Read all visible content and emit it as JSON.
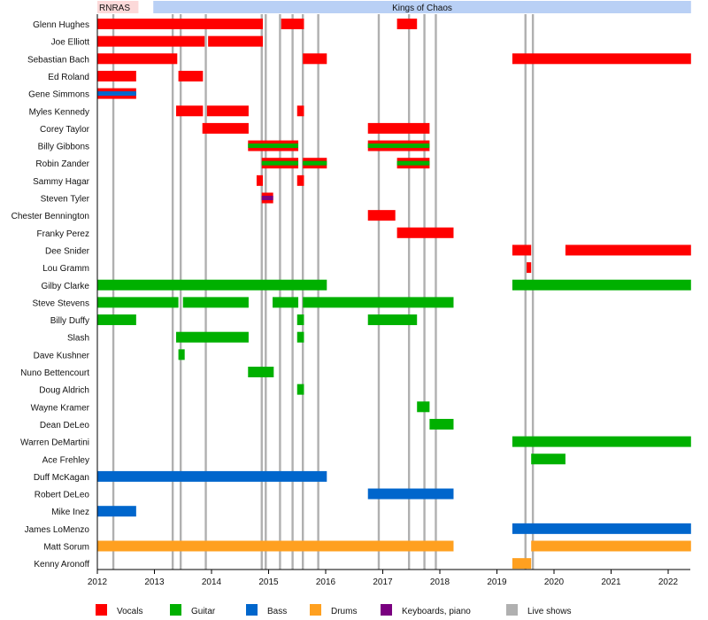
{
  "chart_data": {
    "type": "timeline",
    "title": "",
    "xlim": [
      2012.0,
      2022.4
    ],
    "x_ticks": [
      "2012",
      "2013",
      "2014",
      "2015",
      "2016",
      "2017",
      "2018",
      "2019",
      "2020",
      "2021",
      "2022"
    ],
    "periods": [
      {
        "label": "RNRAS",
        "start": 2012.0,
        "end": 2012.72,
        "color": "#fcd9d9"
      },
      {
        "label": "Kings of Chaos",
        "start": 2012.98,
        "end": 2022.4,
        "color": "#b9d0f5"
      }
    ],
    "live_shows": [
      2012.28,
      2013.32,
      2013.46,
      2013.9,
      2014.88,
      2014.95,
      2015.2,
      2015.42,
      2015.6,
      2015.87,
      2016.93,
      2017.46,
      2017.73,
      2017.93,
      2019.5,
      2019.63
    ],
    "colors": {
      "Vocals": "#ff0000",
      "Guitar": "#00b000",
      "Bass": "#0066cc",
      "Drums": "#ffa020",
      "Keyboards, piano": "#7a0080",
      "Live shows": "#b0b0b0"
    },
    "legend": [
      "Vocals",
      "Guitar",
      "Bass",
      "Drums",
      "Keyboards, piano",
      "Live shows"
    ],
    "members": [
      {
        "name": "Glenn Hughes",
        "bars": [
          {
            "s": 2012.0,
            "e": 2014.9,
            "r": "Vocals"
          },
          {
            "s": 2015.22,
            "e": 2015.62,
            "r": "Vocals"
          },
          {
            "s": 2017.25,
            "e": 2017.6,
            "r": "Vocals"
          }
        ]
      },
      {
        "name": "Joe Elliott",
        "bars": [
          {
            "s": 2012.0,
            "e": 2013.88,
            "r": "Vocals"
          },
          {
            "s": 2013.94,
            "e": 2014.9,
            "r": "Vocals"
          }
        ]
      },
      {
        "name": "Sebastian Bach",
        "bars": [
          {
            "s": 2012.0,
            "e": 2013.4,
            "r": "Vocals"
          },
          {
            "s": 2015.6,
            "e": 2016.02,
            "r": "Vocals"
          },
          {
            "s": 2019.27,
            "e": 2022.4,
            "r": "Vocals"
          }
        ]
      },
      {
        "name": "Ed Roland",
        "bars": [
          {
            "s": 2012.0,
            "e": 2012.68,
            "r": "Vocals"
          },
          {
            "s": 2013.42,
            "e": 2013.85,
            "r": "Vocals"
          }
        ]
      },
      {
        "name": "Gene Simmons",
        "bars": [
          {
            "s": 2012.0,
            "e": 2012.68,
            "r": "Vocals",
            "inner": "Bass"
          }
        ]
      },
      {
        "name": "Myles Kennedy",
        "bars": [
          {
            "s": 2013.38,
            "e": 2013.85,
            "r": "Vocals"
          },
          {
            "s": 2013.92,
            "e": 2014.65,
            "r": "Vocals"
          },
          {
            "s": 2015.5,
            "e": 2015.62,
            "r": "Vocals"
          }
        ]
      },
      {
        "name": "Corey Taylor",
        "bars": [
          {
            "s": 2013.84,
            "e": 2014.65,
            "r": "Vocals"
          },
          {
            "s": 2016.74,
            "e": 2017.82,
            "r": "Vocals"
          }
        ]
      },
      {
        "name": "Billy Gibbons",
        "bars": [
          {
            "s": 2014.64,
            "e": 2015.52,
            "r": "Vocals",
            "inner": "Guitar"
          },
          {
            "s": 2016.74,
            "e": 2017.82,
            "r": "Vocals",
            "inner": "Guitar"
          }
        ]
      },
      {
        "name": "Robin Zander",
        "bars": [
          {
            "s": 2014.88,
            "e": 2015.52,
            "r": "Vocals",
            "inner": "Guitar"
          },
          {
            "s": 2015.6,
            "e": 2016.02,
            "r": "Vocals",
            "inner": "Guitar"
          },
          {
            "s": 2017.25,
            "e": 2017.82,
            "r": "Vocals",
            "inner": "Guitar"
          }
        ]
      },
      {
        "name": "Sammy Hagar",
        "bars": [
          {
            "s": 2014.79,
            "e": 2014.9,
            "r": "Vocals"
          },
          {
            "s": 2015.5,
            "e": 2015.62,
            "r": "Vocals"
          }
        ]
      },
      {
        "name": "Steven Tyler",
        "bars": [
          {
            "s": 2014.88,
            "e": 2015.08,
            "r": "Vocals",
            "inner": "Keyboards, piano"
          }
        ]
      },
      {
        "name": "Chester Bennington",
        "bars": [
          {
            "s": 2016.74,
            "e": 2017.22,
            "r": "Vocals"
          }
        ]
      },
      {
        "name": "Franky Perez",
        "bars": [
          {
            "s": 2017.25,
            "e": 2018.24,
            "r": "Vocals"
          }
        ]
      },
      {
        "name": "Dee Snider",
        "bars": [
          {
            "s": 2019.27,
            "e": 2019.6,
            "r": "Vocals"
          },
          {
            "s": 2020.2,
            "e": 2022.4,
            "r": "Vocals"
          }
        ]
      },
      {
        "name": "Lou Gramm",
        "bars": [
          {
            "s": 2019.52,
            "e": 2019.6,
            "r": "Vocals"
          }
        ]
      },
      {
        "name": "Gilby Clarke",
        "bars": [
          {
            "s": 2012.0,
            "e": 2016.02,
            "r": "Guitar"
          },
          {
            "s": 2019.27,
            "e": 2022.4,
            "r": "Guitar"
          }
        ]
      },
      {
        "name": "Steve Stevens",
        "bars": [
          {
            "s": 2012.0,
            "e": 2013.42,
            "r": "Guitar"
          },
          {
            "s": 2013.5,
            "e": 2014.65,
            "r": "Guitar"
          },
          {
            "s": 2015.07,
            "e": 2015.52,
            "r": "Guitar"
          },
          {
            "s": 2015.6,
            "e": 2018.24,
            "r": "Guitar"
          }
        ]
      },
      {
        "name": "Billy Duffy",
        "bars": [
          {
            "s": 2012.0,
            "e": 2012.68,
            "r": "Guitar"
          },
          {
            "s": 2015.5,
            "e": 2015.62,
            "r": "Guitar"
          },
          {
            "s": 2016.74,
            "e": 2017.6,
            "r": "Guitar"
          }
        ]
      },
      {
        "name": "Slash",
        "bars": [
          {
            "s": 2013.38,
            "e": 2014.65,
            "r": "Guitar"
          },
          {
            "s": 2015.5,
            "e": 2015.62,
            "r": "Guitar"
          }
        ]
      },
      {
        "name": "Dave Kushner",
        "bars": [
          {
            "s": 2013.42,
            "e": 2013.53,
            "r": "Guitar"
          }
        ]
      },
      {
        "name": "Nuno Bettencourt",
        "bars": [
          {
            "s": 2014.64,
            "e": 2015.09,
            "r": "Guitar"
          }
        ]
      },
      {
        "name": "Doug Aldrich",
        "bars": [
          {
            "s": 2015.5,
            "e": 2015.62,
            "r": "Guitar"
          }
        ]
      },
      {
        "name": "Wayne Kramer",
        "bars": [
          {
            "s": 2017.6,
            "e": 2017.82,
            "r": "Guitar"
          }
        ]
      },
      {
        "name": "Dean DeLeo",
        "bars": [
          {
            "s": 2017.82,
            "e": 2018.24,
            "r": "Guitar"
          }
        ]
      },
      {
        "name": "Warren DeMartini",
        "bars": [
          {
            "s": 2019.27,
            "e": 2022.4,
            "r": "Guitar"
          }
        ]
      },
      {
        "name": "Ace Frehley",
        "bars": [
          {
            "s": 2019.6,
            "e": 2020.2,
            "r": "Guitar"
          }
        ]
      },
      {
        "name": "Duff McKagan",
        "bars": [
          {
            "s": 2012.0,
            "e": 2016.02,
            "r": "Bass"
          }
        ]
      },
      {
        "name": "Robert DeLeo",
        "bars": [
          {
            "s": 2016.74,
            "e": 2018.24,
            "r": "Bass"
          }
        ]
      },
      {
        "name": "Mike Inez",
        "bars": [
          {
            "s": 2012.0,
            "e": 2012.68,
            "r": "Bass"
          }
        ]
      },
      {
        "name": "James LoMenzo",
        "bars": [
          {
            "s": 2019.27,
            "e": 2022.4,
            "r": "Bass"
          }
        ]
      },
      {
        "name": "Matt Sorum",
        "bars": [
          {
            "s": 2012.0,
            "e": 2018.24,
            "r": "Drums"
          },
          {
            "s": 2019.6,
            "e": 2022.4,
            "r": "Drums"
          }
        ]
      },
      {
        "name": "Kenny Aronoff",
        "bars": [
          {
            "s": 2019.27,
            "e": 2019.6,
            "r": "Drums"
          }
        ]
      }
    ]
  }
}
